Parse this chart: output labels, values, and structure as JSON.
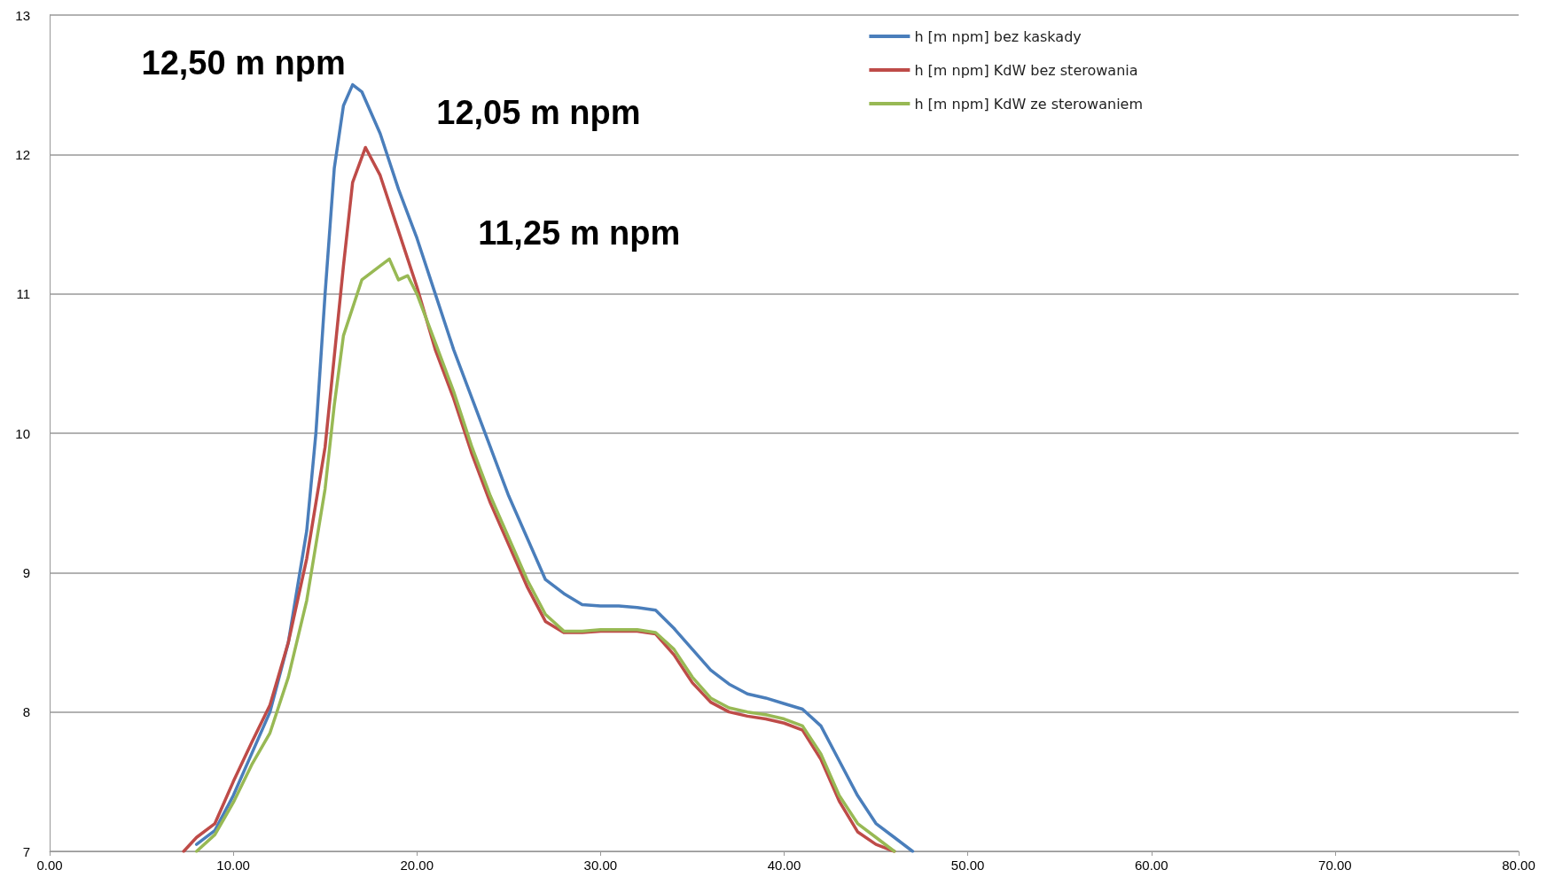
{
  "chart_data": {
    "type": "line",
    "xlim": [
      0,
      80
    ],
    "ylim": [
      7,
      13
    ],
    "xticks": [
      {
        "value": 0,
        "label": "0.00"
      },
      {
        "value": 10,
        "label": "10.00"
      },
      {
        "value": 20,
        "label": "20.00"
      },
      {
        "value": 30,
        "label": "30.00"
      },
      {
        "value": 40,
        "label": "40.00"
      },
      {
        "value": 50,
        "label": "50.00"
      },
      {
        "value": 60,
        "label": "60.00"
      },
      {
        "value": 70,
        "label": "70.00"
      },
      {
        "value": 80,
        "label": "80.00"
      }
    ],
    "yticks": [
      7,
      8,
      9,
      10,
      11,
      12,
      13
    ],
    "grid": "y",
    "legend": "top right",
    "marker": "none",
    "line_style": "solid",
    "annotations": [
      {
        "text": "12,50 m npm",
        "x": 16.5,
        "y": 12.5
      },
      {
        "text": "12,05 m npm",
        "x": 17.2,
        "y": 12.05
      },
      {
        "text": "11,25 m npm",
        "x": 18.5,
        "y": 11.25
      }
    ],
    "series": [
      {
        "name": "h [m npm] bez kaskady",
        "color": "#4a7ebb",
        "x": [
          8,
          9,
          10,
          11,
          12,
          13,
          14,
          14.5,
          15,
          15.5,
          16,
          16.5,
          17,
          18,
          19,
          20,
          21,
          22,
          23,
          24,
          25,
          26,
          27,
          28,
          29,
          30,
          31,
          32,
          33,
          34,
          35,
          36,
          37,
          38,
          39,
          40,
          41,
          42,
          43,
          44,
          45,
          46,
          47
        ],
        "values": [
          7.05,
          7.15,
          7.4,
          7.7,
          8.0,
          8.5,
          9.3,
          10.0,
          11.0,
          11.9,
          12.35,
          12.5,
          12.45,
          12.15,
          11.75,
          11.4,
          11.0,
          10.6,
          10.25,
          9.9,
          9.55,
          9.25,
          8.95,
          8.85,
          8.77,
          8.76,
          8.76,
          8.75,
          8.73,
          8.6,
          8.45,
          8.3,
          8.2,
          8.13,
          8.1,
          8.06,
          8.02,
          7.9,
          7.65,
          7.4,
          7.2,
          7.1,
          7.0
        ]
      },
      {
        "name": "h [m npm] KdW bez sterowania",
        "color": "#be4b48",
        "x": [
          7.3,
          8,
          9,
          10,
          11,
          12,
          13,
          14,
          15,
          16,
          16.5,
          17.2,
          18,
          19,
          20,
          21,
          22,
          23,
          24,
          25,
          26,
          27,
          28,
          29,
          30,
          31,
          32,
          33,
          34,
          35,
          36,
          37,
          38,
          39,
          40,
          41,
          42,
          43,
          44,
          45,
          46
        ],
        "values": [
          7.0,
          7.1,
          7.2,
          7.5,
          7.78,
          8.05,
          8.5,
          9.1,
          9.9,
          11.2,
          11.8,
          12.05,
          11.85,
          11.45,
          11.05,
          10.6,
          10.25,
          9.85,
          9.5,
          9.2,
          8.9,
          8.65,
          8.57,
          8.57,
          8.58,
          8.58,
          8.58,
          8.56,
          8.41,
          8.21,
          8.07,
          8.0,
          7.97,
          7.95,
          7.92,
          7.87,
          7.66,
          7.36,
          7.14,
          7.05,
          7.0
        ]
      },
      {
        "name": "h [m npm] KdW ze sterowaniem",
        "color": "#98b954",
        "x": [
          8,
          9,
          10,
          11,
          12,
          13,
          14,
          15,
          15.5,
          16,
          17,
          18,
          18.5,
          19,
          19.5,
          20,
          21,
          22,
          23,
          24,
          25,
          26,
          27,
          28,
          29,
          30,
          31,
          32,
          33,
          34,
          35,
          36,
          37,
          38,
          39,
          40,
          41,
          42,
          43,
          44,
          45,
          46
        ],
        "values": [
          7.0,
          7.12,
          7.35,
          7.62,
          7.85,
          8.25,
          8.8,
          9.6,
          10.2,
          10.7,
          11.1,
          11.2,
          11.25,
          11.1,
          11.13,
          11.0,
          10.65,
          10.3,
          9.9,
          9.55,
          9.25,
          8.95,
          8.7,
          8.58,
          8.58,
          8.59,
          8.59,
          8.59,
          8.57,
          8.45,
          8.25,
          8.1,
          8.03,
          8.0,
          7.98,
          7.95,
          7.9,
          7.7,
          7.4,
          7.2,
          7.1,
          7.0
        ]
      }
    ]
  }
}
